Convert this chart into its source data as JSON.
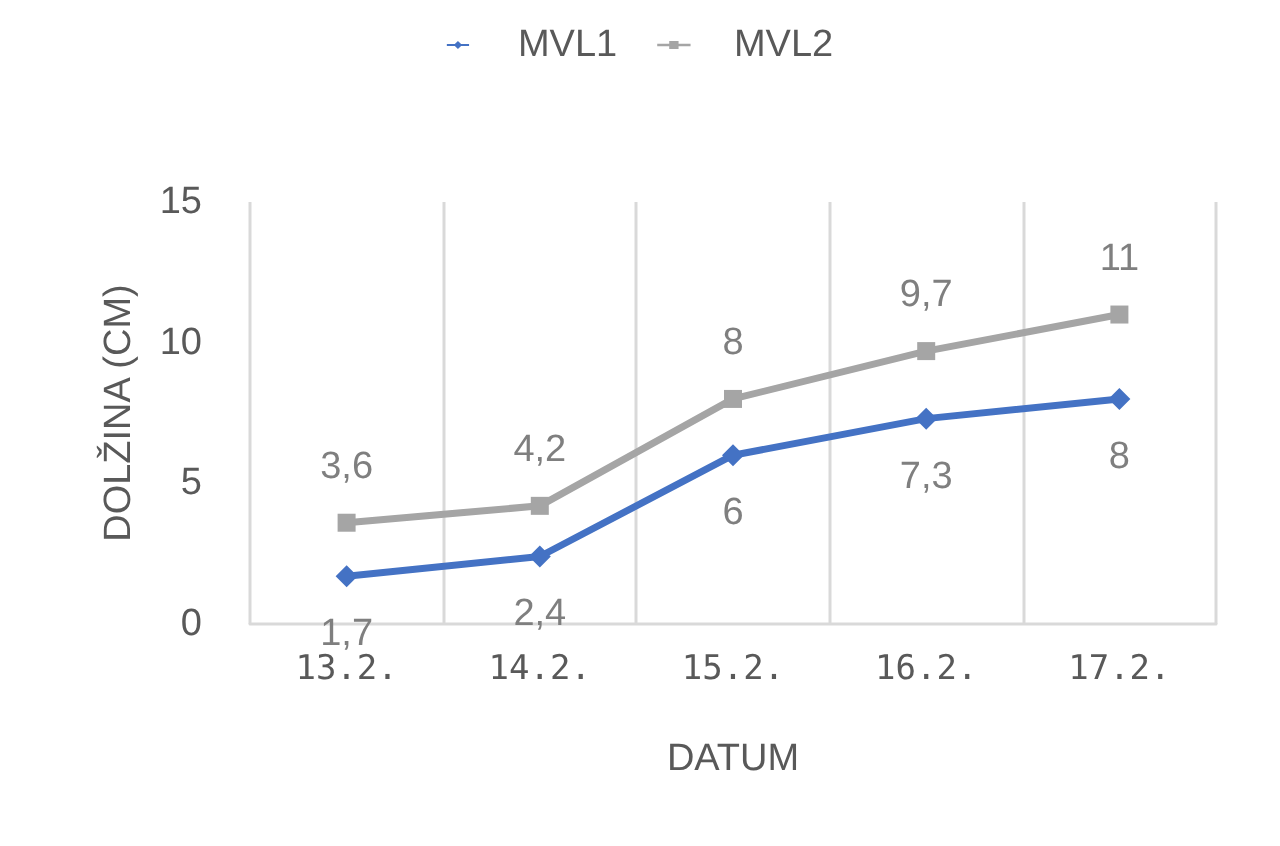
{
  "chart_data": {
    "type": "line",
    "xlabel": "DATUM",
    "ylabel": "DOLŽINA (CM)",
    "categories": [
      "13.2.",
      "14.2.",
      "15.2.",
      "16.2.",
      "17.2."
    ],
    "series": [
      {
        "name": "MVL1",
        "color": "#4472c4",
        "marker": "diamond",
        "values": [
          1.7,
          2.4,
          6,
          7.3,
          8
        ],
        "value_labels": [
          "1,7",
          "2,4",
          "6",
          "7,3",
          "8"
        ]
      },
      {
        "name": "MVL2",
        "color": "#a5a5a5",
        "marker": "square",
        "values": [
          3.6,
          4.2,
          8,
          9.7,
          11
        ],
        "value_labels": [
          "3,6",
          "4,2",
          "8",
          "9,7",
          "11"
        ]
      }
    ],
    "ylim": [
      0,
      15
    ],
    "yticks": [
      0,
      5,
      10,
      15
    ],
    "grid": "x",
    "legend": "top"
  }
}
